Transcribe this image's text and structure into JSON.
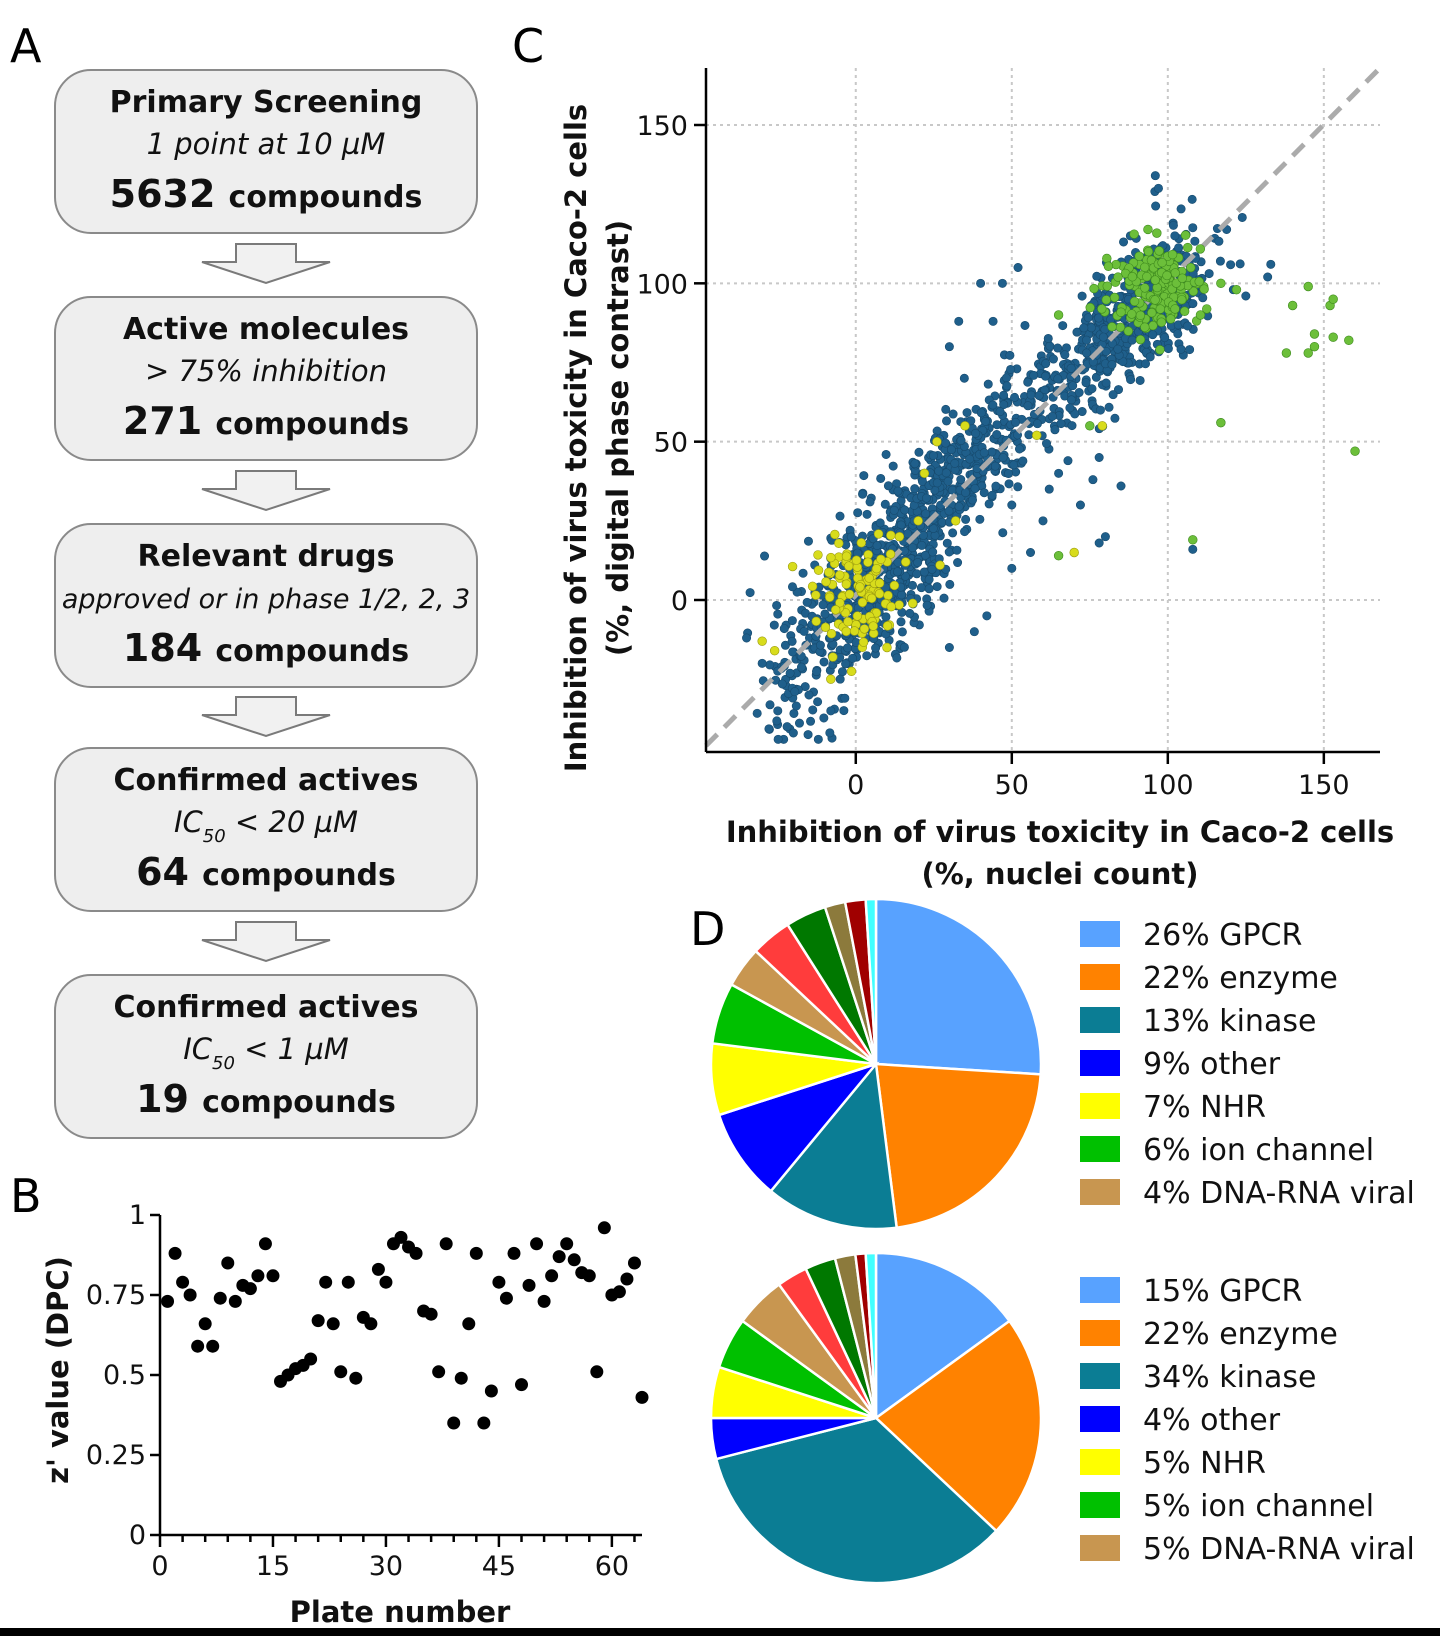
{
  "panel_labels": {
    "a": "A",
    "b": "B",
    "c": "C",
    "d": "D"
  },
  "flowchart": [
    {
      "title": "Primary Screening",
      "subtitle": "1 point at 10 µM",
      "count": "5632",
      "unit": "compounds"
    },
    {
      "title": "Active molecules",
      "subtitle": "> 75% inhibition",
      "count": "271",
      "unit": "compounds"
    },
    {
      "title": "Relevant drugs",
      "subtitle": "approved or in phase 1/2, 2, 3",
      "count": "184",
      "unit": "compounds"
    },
    {
      "title": "Confirmed actives",
      "subtitle_main": "IC",
      "subtitle_sub": "50",
      "subtitle_rest": " < 20 µM",
      "count": "64",
      "unit": "compounds"
    },
    {
      "title": "Confirmed actives",
      "subtitle_main": "IC",
      "subtitle_sub": "50",
      "subtitle_rest": " < 1 µM",
      "count": "19",
      "unit": "compounds"
    }
  ],
  "chart_data": [
    {
      "panel": "B",
      "type": "scatter",
      "xlabel": "Plate number",
      "ylabel": "z' value (DPC)",
      "xlim": [
        0,
        64
      ],
      "ylim": [
        0,
        1
      ],
      "xticks": [
        0,
        15,
        30,
        45,
        60
      ],
      "yticks": [
        0,
        0.25,
        0.5,
        0.75,
        1
      ],
      "ytick_labels": [
        "0",
        "0.25",
        "0.5",
        "0.75",
        "1"
      ],
      "points": [
        [
          1,
          0.73
        ],
        [
          2,
          0.88
        ],
        [
          3,
          0.79
        ],
        [
          4,
          0.75
        ],
        [
          5,
          0.59
        ],
        [
          6,
          0.66
        ],
        [
          7,
          0.59
        ],
        [
          8,
          0.74
        ],
        [
          9,
          0.85
        ],
        [
          10,
          0.73
        ],
        [
          11,
          0.78
        ],
        [
          12,
          0.77
        ],
        [
          13,
          0.81
        ],
        [
          14,
          0.91
        ],
        [
          15,
          0.81
        ],
        [
          16,
          0.48
        ],
        [
          17,
          0.5
        ],
        [
          18,
          0.52
        ],
        [
          19,
          0.53
        ],
        [
          20,
          0.55
        ],
        [
          21,
          0.67
        ],
        [
          22,
          0.79
        ],
        [
          23,
          0.66
        ],
        [
          24,
          0.51
        ],
        [
          25,
          0.79
        ],
        [
          26,
          0.49
        ],
        [
          27,
          0.68
        ],
        [
          28,
          0.66
        ],
        [
          29,
          0.83
        ],
        [
          30,
          0.79
        ],
        [
          31,
          0.91
        ],
        [
          32,
          0.93
        ],
        [
          33,
          0.9
        ],
        [
          34,
          0.88
        ],
        [
          35,
          0.7
        ],
        [
          36,
          0.69
        ],
        [
          37,
          0.51
        ],
        [
          38,
          0.91
        ],
        [
          39,
          0.35
        ],
        [
          40,
          0.49
        ],
        [
          41,
          0.66
        ],
        [
          42,
          0.88
        ],
        [
          43,
          0.35
        ],
        [
          44,
          0.45
        ],
        [
          45,
          0.79
        ],
        [
          46,
          0.74
        ],
        [
          47,
          0.88
        ],
        [
          48,
          0.47
        ],
        [
          49,
          0.78
        ],
        [
          50,
          0.91
        ],
        [
          51,
          0.73
        ],
        [
          52,
          0.81
        ],
        [
          53,
          0.87
        ],
        [
          54,
          0.91
        ],
        [
          55,
          0.86
        ],
        [
          56,
          0.82
        ],
        [
          57,
          0.81
        ],
        [
          58,
          0.51
        ],
        [
          59,
          0.96
        ],
        [
          60,
          0.75
        ],
        [
          61,
          0.76
        ],
        [
          62,
          0.8
        ],
        [
          63,
          0.85
        ],
        [
          64,
          0.43
        ]
      ]
    },
    {
      "panel": "C",
      "type": "scatter",
      "xlabel_line1": "Inhibition of virus toxicity in Caco-2 cells",
      "xlabel_line2": "(%, nuclei count)",
      "ylabel_line1": "Inhibition of virus toxicity in Caco-2 cells",
      "ylabel_line2": "(%, digital phase contrast)",
      "xlim": [
        -48,
        168
      ],
      "ylim": [
        -48,
        168
      ],
      "xticks": [
        0,
        50,
        100,
        150
      ],
      "yticks": [
        0,
        50,
        100,
        150
      ],
      "grid": true,
      "diagonal": "dashed y = x",
      "colors": {
        "main": "#1f5f8b",
        "yellow": "#d8dc1c",
        "green": "#6cbf3a",
        "diagonal": "#ababab"
      },
      "series": [
        {
          "color": "main",
          "description": "all screened compounds (dense cloud along diagonal)"
        },
        {
          "color": "yellow",
          "description": "cluster near 0,0 plus scattered points"
        },
        {
          "color": "green",
          "description": "cluster near 100,100 plus outliers at high x"
        }
      ],
      "green_outliers": [
        [
          117,
          100
        ],
        [
          122,
          98
        ],
        [
          140,
          93
        ],
        [
          145,
          99
        ],
        [
          147,
          84
        ],
        [
          152,
          93
        ],
        [
          153,
          83
        ],
        [
          158,
          82
        ],
        [
          145,
          78
        ],
        [
          147,
          80
        ],
        [
          153,
          95
        ],
        [
          138,
          78
        ],
        [
          117,
          56
        ],
        [
          160,
          47
        ],
        [
          108,
          19
        ],
        [
          65,
          14
        ],
        [
          75,
          55
        ],
        [
          65,
          90
        ]
      ],
      "yellow_outliers": [
        [
          -30,
          -13
        ],
        [
          -26,
          -16
        ],
        [
          -8,
          -25
        ],
        [
          35,
          55
        ],
        [
          32,
          25
        ],
        [
          26,
          50
        ],
        [
          79,
          55
        ],
        [
          70,
          15
        ],
        [
          58,
          52
        ],
        [
          27,
          11
        ],
        [
          20,
          25
        ],
        [
          14,
          20
        ],
        [
          16,
          12
        ],
        [
          22,
          40
        ],
        [
          10,
          -15
        ]
      ],
      "main_outliers": [
        [
          -35,
          -12
        ],
        [
          -30,
          -20
        ],
        [
          -25,
          -35
        ],
        [
          -22,
          -40
        ],
        [
          -20,
          -42
        ],
        [
          -15,
          -30
        ],
        [
          -8,
          -35
        ],
        [
          -5,
          -25
        ],
        [
          30,
          -15
        ],
        [
          42,
          -5
        ],
        [
          50,
          10
        ],
        [
          56,
          15
        ],
        [
          85,
          36
        ],
        [
          80,
          20
        ],
        [
          78,
          18
        ],
        [
          108,
          16
        ],
        [
          117,
          56
        ],
        [
          96,
          134
        ],
        [
          97,
          130
        ],
        [
          88,
          115
        ],
        [
          104,
          100
        ],
        [
          121,
          98
        ],
        [
          133,
          106
        ],
        [
          132,
          102
        ],
        [
          125,
          96
        ],
        [
          47,
          100
        ],
        [
          40,
          100
        ],
        [
          44,
          88
        ],
        [
          52,
          105
        ],
        [
          33,
          88
        ],
        [
          30,
          80
        ],
        [
          60,
          25
        ],
        [
          62,
          35
        ],
        [
          65,
          40
        ],
        [
          68,
          44
        ],
        [
          72,
          30
        ],
        [
          76,
          38
        ],
        [
          78,
          45
        ],
        [
          63,
          58
        ],
        [
          50,
          30
        ],
        [
          38,
          -10
        ]
      ]
    },
    {
      "panel": "D",
      "type": "pie",
      "pies": [
        {
          "slices": [
            {
              "label": "26% GPCR",
              "value": 26,
              "color": "#58a2ff"
            },
            {
              "label": "22% enzyme",
              "value": 22,
              "color": "#ff8200"
            },
            {
              "label": "13% kinase",
              "value": 13,
              "color": "#0b7d94"
            },
            {
              "label": "9% other",
              "value": 9,
              "color": "#0000ff"
            },
            {
              "label": "7% NHR",
              "value": 7,
              "color": "#ffff00"
            },
            {
              "label": "6% ion channel",
              "value": 6,
              "color": "#00c000"
            },
            {
              "label": "4% DNA-RNA viral",
              "value": 4,
              "color": "#c89650"
            },
            {
              "label": "",
              "value": 4,
              "color": "#ff3c3c"
            },
            {
              "label": "",
              "value": 4,
              "color": "#007800"
            },
            {
              "label": "",
              "value": 2,
              "color": "#8c7a3c"
            },
            {
              "label": "",
              "value": 2,
              "color": "#a00000"
            },
            {
              "label": "",
              "value": 1,
              "color": "#40ffff"
            }
          ]
        },
        {
          "slices": [
            {
              "label": "15% GPCR",
              "value": 15,
              "color": "#58a2ff"
            },
            {
              "label": "22% enzyme",
              "value": 22,
              "color": "#ff8200"
            },
            {
              "label": "34% kinase",
              "value": 34,
              "color": "#0b7d94"
            },
            {
              "label": "4% other",
              "value": 4,
              "color": "#0000ff"
            },
            {
              "label": "5% NHR",
              "value": 5,
              "color": "#ffff00"
            },
            {
              "label": "5% ion channel",
              "value": 5,
              "color": "#00c000"
            },
            {
              "label": "5% DNA-RNA viral",
              "value": 5,
              "color": "#c89650"
            },
            {
              "label": "",
              "value": 3,
              "color": "#ff3c3c"
            },
            {
              "label": "",
              "value": 3,
              "color": "#007800"
            },
            {
              "label": "",
              "value": 2,
              "color": "#8c7a3c"
            },
            {
              "label": "",
              "value": 1,
              "color": "#a00000"
            },
            {
              "label": "",
              "value": 1,
              "color": "#40ffff"
            }
          ]
        }
      ]
    }
  ]
}
